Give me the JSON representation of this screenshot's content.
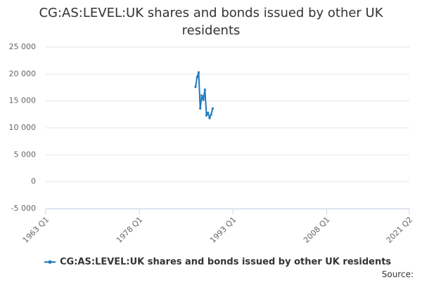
{
  "chart_data": {
    "type": "line",
    "title": "CG:AS:LEVEL:UK shares and bonds issued by other UK residents",
    "x": [
      "1987 Q1",
      "1987 Q2",
      "1987 Q3",
      "1987 Q4",
      "1988 Q1",
      "1988 Q2",
      "1988 Q3",
      "1988 Q4",
      "1989 Q1",
      "1989 Q2",
      "1989 Q3",
      "1989 Q4"
    ],
    "series": [
      {
        "name": "CG:AS:LEVEL:UK shares and bonds issued by other UK residents",
        "color": "#1f7bbf",
        "values": [
          17600,
          19400,
          20300,
          13600,
          16000,
          15200,
          17100,
          12300,
          12800,
          11800,
          12500,
          13600
        ]
      }
    ],
    "xlim": [
      "1963 Q1",
      "2021 Q2"
    ],
    "xticks": [
      "1963 Q1",
      "1978 Q1",
      "1993 Q1",
      "2008 Q1",
      "2021 Q2"
    ],
    "ylim": [
      -5000,
      25000
    ],
    "yticks": [
      {
        "value": -5000,
        "label": "-5 000"
      },
      0,
      {
        "value": 5000,
        "label": "5 000"
      },
      {
        "value": 10000,
        "label": "10 000"
      },
      {
        "value": 15000,
        "label": "15 000"
      },
      {
        "value": 20000,
        "label": "20 000"
      },
      {
        "value": 25000,
        "label": "25 000"
      }
    ],
    "grid": true,
    "legend": "bottom",
    "source": "Source:"
  }
}
